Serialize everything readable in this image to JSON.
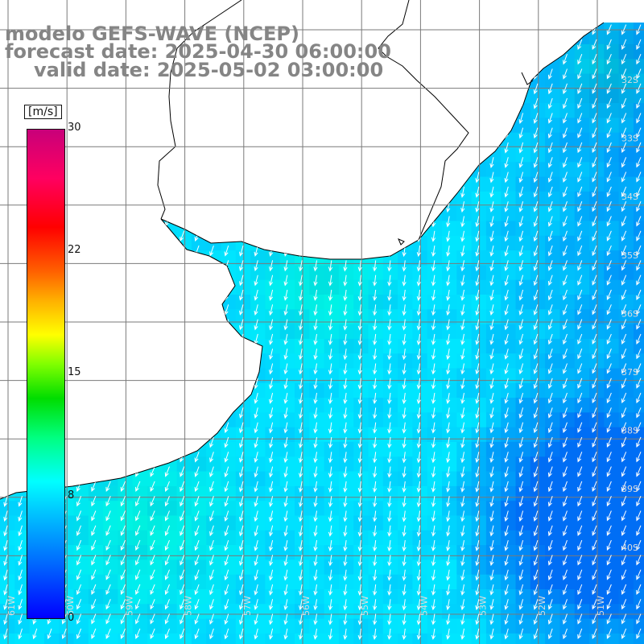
{
  "title": {
    "model": "modelo GEFS-WAVE (NCEP)",
    "forecast_date": "forecast date: 2025-04-30 06:00:00",
    "valid_date": "valid date: 2025-05-02 03:00:00"
  },
  "colorbar": {
    "unit": "[m/s]",
    "ticks": [
      "30",
      "22",
      "15",
      "8",
      "0"
    ],
    "range": [
      0,
      30
    ]
  },
  "map": {
    "latitude_labels": [
      "32S",
      "33S",
      "34S",
      "35S",
      "36S",
      "37S",
      "38S",
      "39S",
      "40S"
    ],
    "longitude_labels": [
      "61W",
      "60W",
      "59W",
      "58W",
      "57W",
      "56W",
      "55W",
      "54W",
      "53W",
      "52W",
      "51W"
    ],
    "colors": {
      "land": "#ffffff",
      "coast": "#000000",
      "grid": "#7a7a7a",
      "arrows": "#ffffff",
      "title": "#858585"
    },
    "field": {
      "quantity": "wind speed and direction",
      "units": "m/s",
      "typical_speed": 8,
      "direction": "from north-northeast (arrows pointing south-southwest)"
    }
  }
}
